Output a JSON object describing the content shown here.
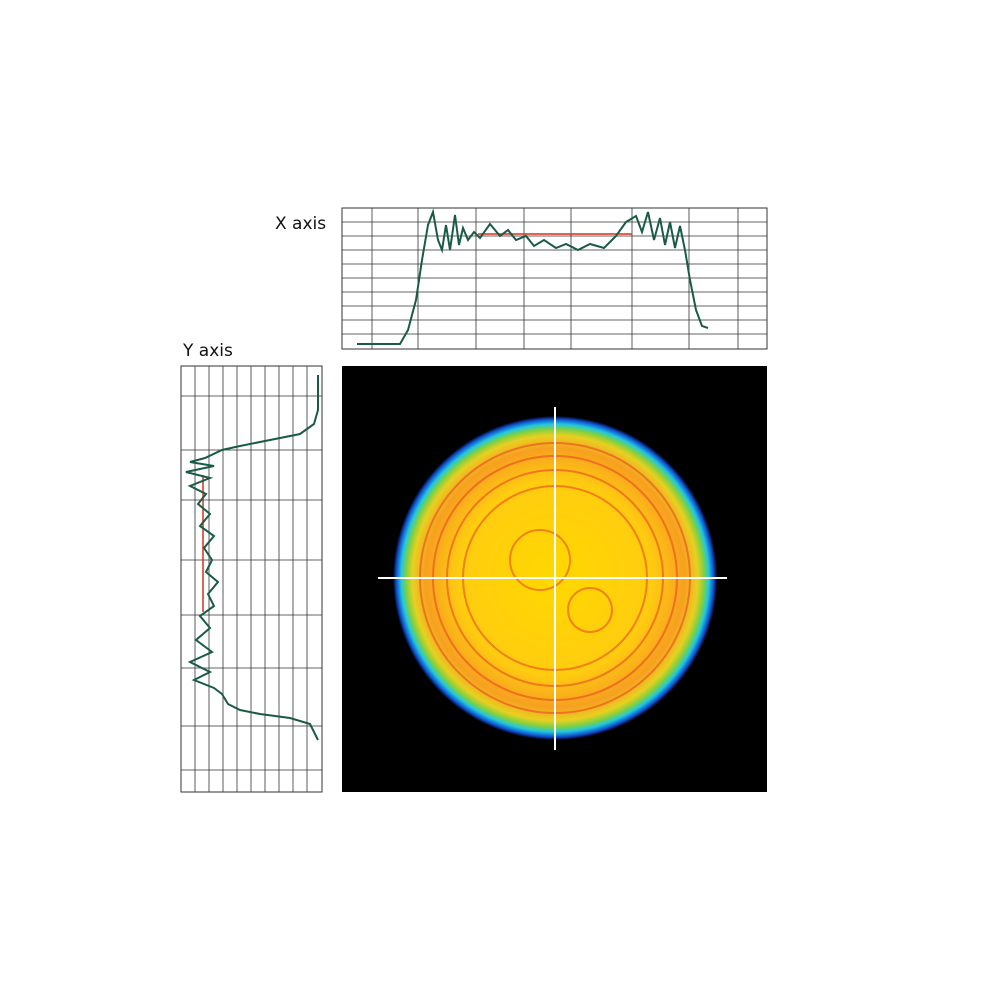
{
  "labels": {
    "x_axis": "X axis",
    "y_axis": "Y axis"
  }
}
